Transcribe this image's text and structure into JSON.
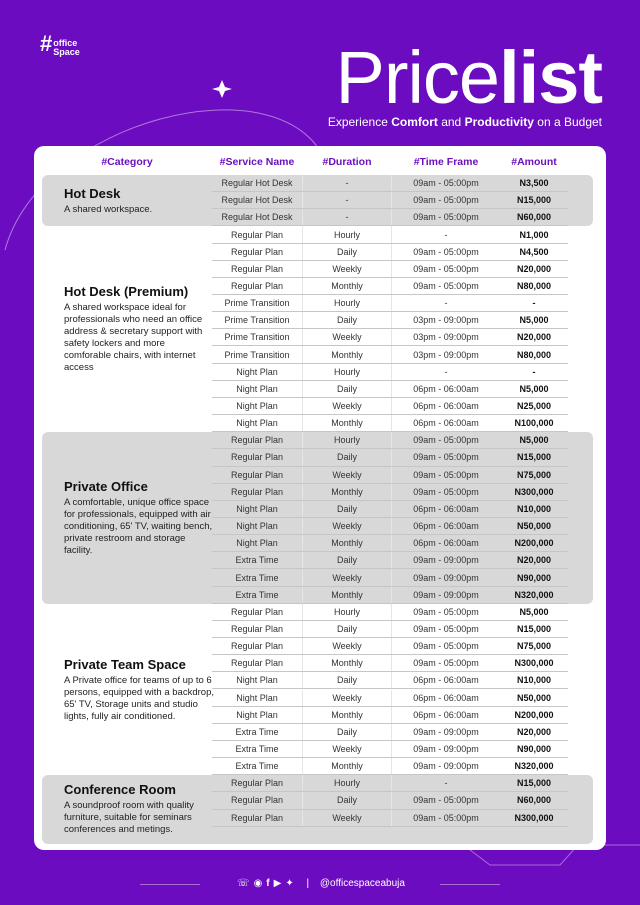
{
  "brand": {
    "name_line1": "office",
    "name_line2": "Space"
  },
  "title": {
    "light": "Price",
    "bold": "list"
  },
  "subtitle": {
    "p1": "Experience ",
    "b1": "Comfort",
    "p2": " and ",
    "b2": "Productivity",
    "p3": " on a Budget"
  },
  "headers": [
    "#Category",
    "#Service Name",
    "#Duration",
    "#Time Frame",
    "#Amount"
  ],
  "groups": [
    {
      "name": "Hot Desk",
      "desc": "A shared workspace.",
      "rows": [
        [
          "Regular Hot Desk",
          "-",
          "09am - 05:00pm",
          "N3,500"
        ],
        [
          "Regular Hot Desk",
          "-",
          "09am - 05:00pm",
          "N15,000"
        ],
        [
          "Regular Hot Desk",
          "-",
          "09am - 05:00pm",
          "N60,000"
        ]
      ]
    },
    {
      "name": "Hot Desk (Premium)",
      "desc": "A shared workspace ideal for professionals who need an office address & secretary support with safety lockers and more comforable chairs, with internet access",
      "rows": [
        [
          "Regular Plan",
          "Hourly",
          "-",
          "N1,000"
        ],
        [
          "Regular Plan",
          "Daily",
          "09am - 05:00pm",
          "N4,500"
        ],
        [
          "Regular Plan",
          "Weekly",
          "09am - 05:00pm",
          "N20,000"
        ],
        [
          "Regular Plan",
          "Monthly",
          "09am - 05:00pm",
          "N80,000"
        ],
        [
          "Prime Transition",
          "Hourly",
          "-",
          "-"
        ],
        [
          "Prime Transition",
          "Daily",
          "03pm - 09:00pm",
          "N5,000"
        ],
        [
          "Prime Transition",
          "Weekly",
          "03pm - 09:00pm",
          "N20,000"
        ],
        [
          "Prime Transition",
          "Monthly",
          "03pm - 09:00pm",
          "N80,000"
        ],
        [
          "Night Plan",
          "Hourly",
          "-",
          "-"
        ],
        [
          "Night Plan",
          "Daily",
          "06pm - 06:00am",
          "N5,000"
        ],
        [
          "Night Plan",
          "Weekly",
          "06pm - 06:00am",
          "N25,000"
        ],
        [
          "Night Plan",
          "Monthly",
          "06pm - 06:00am",
          "N100,000"
        ]
      ]
    },
    {
      "name": "Private Office",
      "desc": "A comfortable, unique office space for professionals, equipped with air conditioning, 65' TV, waiting bench, private restroom and storage facility.",
      "rows": [
        [
          "Regular Plan",
          "Hourly",
          "09am - 05:00pm",
          "N5,000"
        ],
        [
          "Regular Plan",
          "Daily",
          "09am - 05:00pm",
          "N15,000"
        ],
        [
          "Regular Plan",
          "Weekly",
          "09am - 05:00pm",
          "N75,000"
        ],
        [
          "Regular Plan",
          "Monthly",
          "09am - 05:00pm",
          "N300,000"
        ],
        [
          "Night Plan",
          "Daily",
          "06pm - 06:00am",
          "N10,000"
        ],
        [
          "Night Plan",
          "Weekly",
          "06pm - 06:00am",
          "N50,000"
        ],
        [
          "Night Plan",
          "Monthly",
          "06pm - 06:00am",
          "N200,000"
        ],
        [
          "Extra Time",
          "Daily",
          "09am - 09:00pm",
          "N20,000"
        ],
        [
          "Extra Time",
          "Weekly",
          "09am - 09:00pm",
          "N90,000"
        ],
        [
          "Extra Time",
          "Monthly",
          "09am - 09:00pm",
          "N320,000"
        ]
      ]
    },
    {
      "name": "Private Team Space",
      "desc": "A Private office for teams of up to 6 persons, equipped with a backdrop, 65' TV, Storage units and studio lights, fully air conditioned.",
      "rows": [
        [
          "Regular Plan",
          "Hourly",
          "09am - 05:00pm",
          "N5,000"
        ],
        [
          "Regular Plan",
          "Daily",
          "09am - 05:00pm",
          "N15,000"
        ],
        [
          "Regular Plan",
          "Weekly",
          "09am - 05:00pm",
          "N75,000"
        ],
        [
          "Regular Plan",
          "Monthly",
          "09am - 05:00pm",
          "N300,000"
        ],
        [
          "Night Plan",
          "Daily",
          "06pm - 06:00am",
          "N10,000"
        ],
        [
          "Night Plan",
          "Weekly",
          "06pm - 06:00am",
          "N50,000"
        ],
        [
          "Night Plan",
          "Monthly",
          "06pm - 06:00am",
          "N200,000"
        ],
        [
          "Extra Time",
          "Daily",
          "09am - 09:00pm",
          "N20,000"
        ],
        [
          "Extra Time",
          "Weekly",
          "09am - 09:00pm",
          "N90,000"
        ],
        [
          "Extra Time",
          "Monthly",
          "09am - 09:00pm",
          "N320,000"
        ]
      ]
    },
    {
      "name": "Conference Room",
      "desc": "A soundproof room with quality furniture, suitable for seminars conferences and metings.",
      "rows": [
        [
          "Regular Plan",
          "Hourly",
          "-",
          "N15,000"
        ],
        [
          "Regular Plan",
          "Daily",
          "09am - 05:00pm",
          "N60,000"
        ],
        [
          "Regular Plan",
          "Weekly",
          "09am - 05:00pm",
          "N300,000"
        ]
      ]
    }
  ],
  "footer": {
    "icons": [
      "whatsapp-icon",
      "instagram-icon",
      "facebook-icon",
      "youtube-icon",
      "twitter-icon"
    ],
    "separator": "|",
    "handle": "@officespaceabuja"
  },
  "colors": {
    "background": "#6c0cc0",
    "header_text": "#6a11c0",
    "gray_band": "#d8d8d8"
  }
}
